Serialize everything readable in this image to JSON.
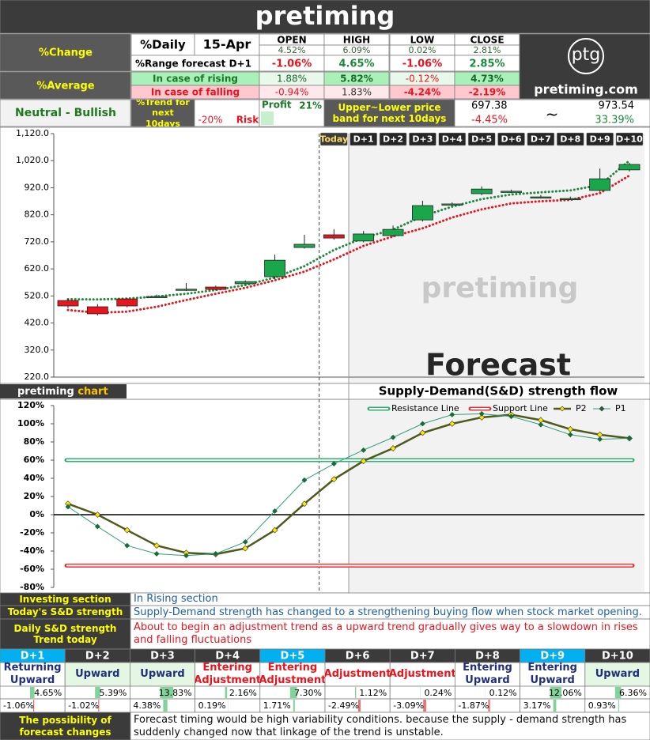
{
  "header": {
    "title": "pretiming"
  },
  "summary": {
    "change_label": "%Change",
    "daily_label": "%Daily",
    "date": "15-Apr",
    "columns": [
      "OPEN",
      "HIGH",
      "LOW",
      "CLOSE"
    ],
    "daily": [
      "4.52%",
      "6.09%",
      "0.02%",
      "2.81%"
    ],
    "range_label": "%Range forecast D+1",
    "range": [
      "-1.06%",
      "4.65%",
      "-1.06%",
      "2.85%"
    ],
    "average_label": "%Average",
    "rising_label": "In case of rising",
    "rising": [
      "1.88%",
      "5.82%",
      "-0.12%",
      "4.73%"
    ],
    "falling_label": "In case of falling",
    "falling": [
      "-0.94%",
      "1.83%",
      "-4.24%",
      "-2.19%"
    ],
    "logo": "ptg",
    "site": "pretiming.com"
  },
  "trend": {
    "status": "Neutral - Bullish",
    "trend_label": "%Trend for next 10days",
    "profit_label": "Profit",
    "profit": "21%",
    "risk": "-20%",
    "risk_label": "Risk",
    "band_label": "Upper~Lower price band for next 10days",
    "lower": "697.38",
    "lower_pct": "-4.45%",
    "tilde": "~",
    "upper": "973.54",
    "upper_pct": "33.39%"
  },
  "chart_data": [
    {
      "type": "candlestick",
      "watermark": "pretiming",
      "forecast_label": "Forecast",
      "buttons": [
        "Today",
        "D+1",
        "D+2",
        "D+3",
        "D+4",
        "D+5",
        "D+6",
        "D+7",
        "D+8",
        "D+9",
        "D+10"
      ],
      "ylim": [
        220,
        1120
      ],
      "yticks": [
        {
          "value": 220,
          "label": "220.0"
        },
        {
          "value": 320,
          "label": "320.0"
        },
        {
          "value": 420,
          "label": "420.0"
        },
        {
          "value": 520,
          "label": "520.0"
        },
        {
          "value": 620,
          "label": "620.0"
        },
        {
          "value": 720,
          "label": "720.0"
        },
        {
          "value": 820,
          "label": "820.0"
        },
        {
          "value": 920,
          "label": "920.0"
        },
        {
          "value": 1020,
          "label": "1,020.0"
        },
        {
          "value": 1120,
          "label": "1,120.0"
        }
      ],
      "open": [
        503,
        480,
        509,
        515,
        542,
        553,
        565,
        591,
        699,
        746,
        723,
        743,
        801,
        858,
        898,
        905,
        884,
        878,
        910,
        986
      ],
      "high": [
        510,
        490,
        512,
        525,
        568,
        558,
        578,
        673,
        746,
        766,
        760,
        780,
        872,
        866,
        925,
        913,
        893,
        887,
        991,
        1012
      ],
      "low": [
        475,
        448,
        478,
        512,
        538,
        540,
        562,
        582,
        695,
        728,
        718,
        738,
        795,
        855,
        892,
        900,
        880,
        875,
        905,
        980
      ],
      "close": [
        483,
        454,
        483,
        518,
        545,
        544,
        573,
        652,
        711,
        734,
        749,
        766,
        854,
        860,
        915,
        907,
        886,
        880,
        953,
        1006
      ],
      "up_color": "#1aa64a",
      "down_color": "#e8141e",
      "bands": [
        {
          "color": "#1e8a3a",
          "values": [
            508,
            507,
            510,
            518,
            528,
            542,
            560,
            588,
            630,
            690,
            735,
            765,
            815,
            850,
            878,
            895,
            903,
            910,
            930,
            1020
          ]
        },
        {
          "color": "#e8141e",
          "values": [
            468,
            458,
            462,
            480,
            505,
            528,
            550,
            578,
            610,
            655,
            705,
            740,
            770,
            810,
            840,
            862,
            870,
            875,
            900,
            965
          ]
        }
      ]
    },
    {
      "type": "line",
      "label": "pretiming",
      "label_accent": "chart",
      "title": "Supply-Demand(S&D) strength flow",
      "ylim": [
        -80,
        120
      ],
      "yticks": [
        {
          "value": -80,
          "label": "-80%"
        },
        {
          "value": -60,
          "label": "-60%"
        },
        {
          "value": -40,
          "label": "-40%"
        },
        {
          "value": -20,
          "label": "-20%"
        },
        {
          "value": 0,
          "label": "0%"
        },
        {
          "value": 20,
          "label": "20%"
        },
        {
          "value": 40,
          "label": "40%"
        },
        {
          "value": 60,
          "label": "60%"
        },
        {
          "value": 80,
          "label": "80%"
        },
        {
          "value": 100,
          "label": "100%"
        },
        {
          "value": 120,
          "label": "120%"
        }
      ],
      "zero_line": true,
      "lines": [
        {
          "name": "Resistance Line",
          "color": "#2db36b",
          "value": 60
        },
        {
          "name": "Support Line",
          "color": "#e8353b",
          "value": -56
        }
      ],
      "series": [
        {
          "name": "P2",
          "color": "#4e5a1c",
          "marker_color": "#ffe600",
          "values": [
            12,
            0,
            -17,
            -34,
            -42,
            -43.5,
            -37,
            -17,
            12,
            39,
            59,
            73,
            90,
            100,
            107,
            110,
            104,
            94,
            88,
            84
          ]
        },
        {
          "name": "P1",
          "color": "#2e9e78",
          "marker_color": "#1b6b3a",
          "values": [
            8.7,
            -13,
            -34,
            -43,
            -45,
            -43,
            -30,
            4,
            38,
            56,
            71,
            85,
            100,
            110,
            111,
            108,
            99,
            88,
            83,
            84
          ]
        }
      ]
    }
  ],
  "sections": {
    "rows": [
      [
        "Investing section",
        "In Rising section"
      ],
      [
        "Today's S&D strength",
        "Supply-Demand strength has changed to a strengthening buying flow when stock market opening."
      ],
      [
        "Daily S&D strength Trend today",
        "About to begin an adjustment trend as a upward trend gradually gives way to a slowdown in rises and falling fluctuations"
      ]
    ],
    "text_colors": [
      "#1f5fa0",
      "#1f5fa0",
      "#e8141e"
    ]
  },
  "forecast": {
    "days": [
      "D+1",
      "D+2",
      "D+3",
      "D+4",
      "D+5",
      "D+6",
      "D+7",
      "D+8",
      "D+9",
      "D+10"
    ],
    "header_colors": [
      "#00b0f0",
      "#3b3b3b",
      "#3b3b3b",
      "#3b3b3b",
      "#00b0f0",
      "#3b3b3b",
      "#3b3b3b",
      "#3b3b3b",
      "#00b0f0",
      "#3b3b3b"
    ],
    "trends": [
      "Returning Upward",
      "Upward",
      "Upward",
      "Entering Adjustment",
      "Entering Adjustment",
      "Adjustment",
      "Adjustment",
      "Entering Upward",
      "Entering Upward",
      "Upward"
    ],
    "trend_colors": [
      "#1f2f7a",
      "#1f2f7a",
      "#1f2f7a",
      "#e8141e",
      "#e8141e",
      "#e8141e",
      "#e8141e",
      "#1f2f7a",
      "#1f2f7a",
      "#1f2f7a"
    ],
    "trend_backgrounds": [
      "#ffffff",
      "#e3f7e3",
      "#e3f7e3",
      "#ffffff",
      "#ffffff",
      "#ffffff",
      "#ffffff",
      "#ffffff",
      "#ffffff",
      "#e3f7e3"
    ],
    "up": {
      "values": [
        4.65,
        5.39,
        13.83,
        2.16,
        7.3,
        1.12,
        0.24,
        0.12,
        12.06,
        6.36
      ],
      "value_labels": [
        "4.65%",
        "5.39%",
        "13.83%",
        "2.16%",
        "7.30%",
        "1.12%",
        "0.24%",
        "0.12%",
        "12.06%",
        "6.36%"
      ]
    },
    "down": {
      "values": [
        -1.06,
        -1.02,
        4.38,
        0.19,
        1.71,
        -2.49,
        -3.09,
        -1.87,
        3.17,
        0.93
      ],
      "value_labels": [
        "-1.06%",
        "-1.02%",
        "4.38%",
        "0.19%",
        "1.71%",
        "-2.49%",
        "-3.09%",
        "-1.87%",
        "3.17%",
        "0.93%"
      ]
    },
    "note_label": "The possibility of forecast changes",
    "note": "Forecast timing would be high variability conditions. because the supply - demand strength has suddenly changed now that linkage of the trend is unstable."
  }
}
